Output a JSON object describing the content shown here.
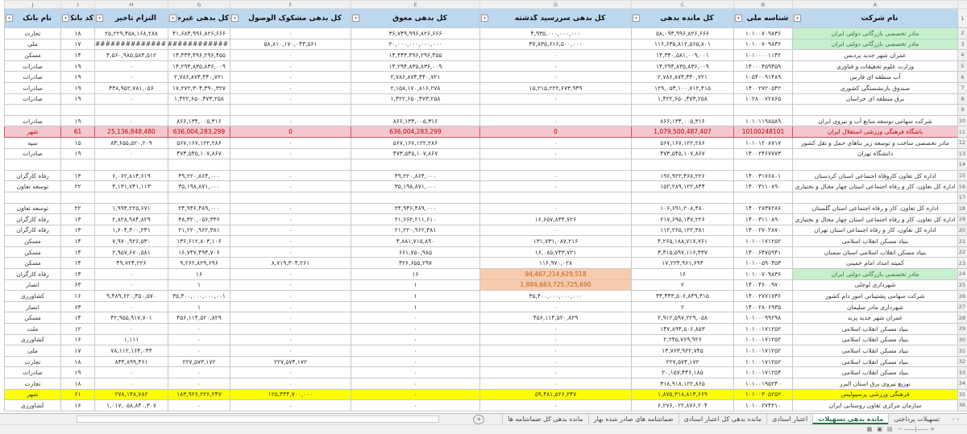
{
  "columns": {
    "letters": [
      "A",
      "B",
      "C",
      "D",
      "E",
      "F",
      "G",
      "H",
      "I",
      "J"
    ],
    "headers": [
      "نام شرکت",
      "شناسه ملی",
      "کل مانده بدهی",
      "کل بدهی سررسید گذشته",
      "کل بدهی معوق",
      "کل بدهی مشکوک الوصول",
      "کل بدهی غیرجار",
      "التزام تاخیر",
      "کد بانک",
      "نام بانک"
    ]
  },
  "rows": [
    {
      "n": "2",
      "style": "green",
      "c": [
        "مادر تخصصی بازرگانی دولتی ایران",
        "۱۰۱۰۰۷۰۹۸۳۶",
        "۵۸,۰۹۴,۹۹۶,۸۲۶,۶۶۶",
        "۴,۹۳۵,۰۰۰,۰۰۰,۰۰۰",
        "۳۶,۷۴۹,۹۹۶,۸۲۶,۶۶۶",
        "۰",
        "۴۱,۶۸۴,۹۹۶,۸۲۶,۶۶۶",
        "۲۵,۲۲۹,۴۵۸,۱۶۸,۲۸۸",
        "۱۸",
        "تجارت"
      ]
    },
    {
      "n": "3",
      "style": "green",
      "c": [
        "مادر تخصصی بازرگانی دولتی ایران",
        "۱۰۱۰۰۷۰۹۸۳۶",
        "۱۱۶,۶۳۵,۸۱۲,۵۶۵,۸۰۱",
        "۳۷,۸۳۵,۶۱۶,۵۰۰,۰۰۰",
        "۲۰,۰۰۰,۰۰۰,۰۰۰,۰۰۰",
        "۵۸,۸۱۰,۱۷۰,۰۴۳,۵۶۱",
        "##############",
        "##############",
        "۱۷",
        "ملی"
      ]
    },
    {
      "n": "4",
      "c": [
        "عمران شهر جدید پردیس",
        "۱۰۱۰۰۰۰۱۱۴۲",
        "۱۴,۳۴۰,۵۸۱,۰۰۹,۰۰۱",
        "۰",
        "۱۴,۴۴۳,۴۹۶,۲۹۶,۴۵۵",
        "۰",
        "۱۴,۴۴۳,۴۹۶,۲۹۶,۴۵۵",
        "۴,۵۶۰,۹۸۵,۵۸۴,۵۱۲",
        "۱۴",
        "مسکن"
      ]
    },
    {
      "n": "5",
      "c": [
        "وزارت علوم تحقیقات و فناوری",
        "۱۴۰۰۰۴۵۹۴۵۹",
        "۱۴,۲۹۴,۸۳۵,۸۳۶,۰۰۹",
        "۰",
        "۱۴,۲۹۴,۸۳۵,۸۳۶,۰۰۹",
        "۰",
        "۱۴,۲۹۴,۸۳۵,۸۳۶,۰۰۹",
        "۰",
        "۱۹",
        "صادرات"
      ]
    },
    {
      "n": "6",
      "c": [
        "آب منطقه ای فارس",
        "۱۰۵۴۰۰۹۱۴۸۹",
        "۲,۷۸۶,۸۷۴,۴۴۰,۷۲۱",
        "۰",
        "۲,۷۸۶,۸۷۴,۴۴۰,۷۲۱",
        "۰",
        "۲,۷۸۶,۸۷۴,۴۴۰,۷۲۱",
        "۰",
        "۱۹",
        "صادرات"
      ]
    },
    {
      "n": "7",
      "c": [
        "صندوق بازنشستگی کشوری",
        "۱۴۰۰۲۷۲۰۵۴۲",
        "۱۲۹,۰۵۳,۱۰۰,۷۱۲,۴۱۵",
        "۱۵,۲۱۵,۲۲۲,۶۷۳,۹۴۹",
        "۲,۱۵۸,۱۷۰,۸۱۶,۲۷۸",
        "۰",
        "۱۷,۲۷۲,۳۰۴,۳۹۰,۳۲۷",
        "۴۴۸,۹۵۲,۷۸۱,۰۵۶",
        "۱۹",
        "صادرات"
      ]
    },
    {
      "n": "8",
      "c": [
        "برق منطقه ای خراسان",
        "۱۰۲۸۰۰۷۲۸۶۵",
        "۱,۴۲۲,۶۵۰,۴۷۳,۲۵۸",
        "۰",
        "۱,۴۲۲,۶۵۰,۴۷۳,۲۵۸",
        "۰",
        "۱,۴۲۲,۶۵۰,۴۷۳,۲۵۸",
        "۰",
        "۱۹",
        "صادرات"
      ]
    },
    {
      "n": "9",
      "c": [
        "",
        "",
        "",
        "",
        "",
        "",
        "",
        "",
        "",
        ""
      ]
    },
    {
      "n": "10",
      "c": [
        "شرکت سهامی توسعه منابع آب و نیروی ایران",
        "۱۰۱۰۱۱۹۸۵۸۹",
        "۸۶۶,۱۳۴,۰۰۵,۳۱۶",
        "۰",
        "۸۶۶,۱۳۴,۰۰۵,۳۱۶",
        "۰",
        "۸۶۶,۱۳۴,۰۰۵,۳۱۶",
        "۰",
        "۱۹",
        "صادرات"
      ]
    },
    {
      "n": "11",
      "style": "pink",
      "c": [
        "باشگاه فرهنگی ورزشی استقلال ایران",
        "10100248101",
        "1,079,500,487,407",
        "0",
        "636,004,283,299",
        "0",
        "636,004,283,299",
        "25,136,848,480",
        "61",
        "شهر"
      ]
    },
    {
      "n": "12",
      "c": [
        "مادر تخصصی ساخت و توسعه زیر بناهای حمل و نقل کشور",
        "۱۰۱۰۱۲۰۸۷۱۷",
        "۵۶۷,۱۶۷,۱۲۲,۲۸۶",
        "۰",
        "۵۶۷,۱۶۷,۱۲۲,۲۸۶",
        "۰",
        "۵۶۷,۱۶۷,۱۲۲,۲۸۶",
        "۸۴,۶۵۵,۵۲۰,۲۰۹",
        "۱۵",
        "سپه"
      ]
    },
    {
      "n": "13",
      "c": [
        "دانشگاه تهران",
        "۱۴۰۰۲۴۶۷۷۷۳",
        "۴۷۳,۵۴۵,۱۰۷,۸۶۷",
        "۰",
        "۴۷۳,۵۴۵,۱۰۷,۸۶۷",
        "۰",
        "۴۷۳,۵۴۵,۱۰۷,۸۶۷",
        "۰",
        "۱۹",
        "صادرات"
      ]
    },
    {
      "n": "14",
      "c": [
        "",
        "",
        "",
        "",
        "",
        "",
        "",
        "",
        "",
        ""
      ]
    },
    {
      "n": "15",
      "c": [
        "اداره کل تعاون کاروفاه اجتماعی استان کردستان",
        "۱۴۰۰۳۱۷۶۸۰۱",
        "۱۹۶,۹۲۲,۴۶۸,۲۲۶",
        "۰",
        "۴۹,۲۲۰,۸۶۴,۰۰۰",
        "۰",
        "۴۹,۲۲۰,۸۶۴,۰۰۰",
        "۶,۰۶۲,۸۱۴,۶۱۹",
        "۱۳",
        "رفاه کارگران"
      ]
    },
    {
      "n": "16",
      "c": [
        "اداره کل تعاون، کار و رفاه اجتماعی استان چهار محال و بختیاری",
        "۱۴۰۰۳۱۱۰۸۹۰",
        "۱۵۲,۲۸۹,۱۲۲,۸۴۴",
        "۰",
        "۳۵,۱۹۸,۸۷۱,۰۰۰",
        "۰",
        "۳۵,۱۹۸,۸۷۱,۰۰۰",
        "۴,۱۳۱,۷۴۱,۱۱۳",
        "۲۲",
        "توسعه تعاون"
      ]
    },
    {
      "n": "17",
      "c": [
        "",
        "",
        "",
        "",
        "",
        "",
        "",
        "",
        "",
        ""
      ]
    },
    {
      "n": "18",
      "c": [
        "اداره کل تعاون، کار و رفاه اجتماعی استان گلستان",
        "۱۴۰۰۲۸۳۷۲۸۶",
        "۱۰۶,۶۹۱,۲۰۸,۴۸۰",
        "۰",
        "۲۴,۹۴۶,۴۸۹,۰۰۰",
        "۰",
        "۲۴,۹۴۶,۴۸۹,۰۰۰",
        "۱,۹۹۴,۲۲۵,۶۷۱",
        "۲۲",
        "توسعه تعاون"
      ]
    },
    {
      "n": "19",
      "c": [
        "اداره کل تعاون، کار و رفاه اجتماعی استان چهار محال و بختیاری",
        "۱۴۰۰۳۱۱۰۸۹۰",
        "۲۱۷,۶۹۵,۱۴۷,۲۲۶",
        "۱۶,۶۵۷,۸۴۴,۷۲۶",
        "۲۱,۶۶۲,۲۱۱,۶۱۰",
        "۰",
        "۳۸,۳۲۰,۰۵۶,۳۳۶",
        "۲,۸۲۸,۹۸۴,۸۲۹",
        "۱۳",
        "رفاه کارگران"
      ]
    },
    {
      "n": "20",
      "c": [
        "اداره کل تعاون، کار و رفاه اجتماعی استان تهران",
        "۱۴۰۰۲۷۰۲۸۷۰",
        "۱۱۲,۲۶۵,۱۲۲,۳۸۱",
        "۰",
        "۲۱,۲۲۰,۹۶۲,۳۸۱",
        "۰",
        "۲۱,۲۲۰,۹۶۲,۳۸۱",
        "۱,۶۰۴,۳۰۰,۲۴۱",
        "۱۳",
        "رفاه کارگران"
      ]
    },
    {
      "n": "21",
      "c": [
        "بنیاد مسکن انقلاب اسلامی",
        "۱۰۱۰۰۱۷۱۲۵۲",
        "۴,۲۶۵,۱۸۸,۷۱۷,۷۶۱",
        "۱۳۱,۷۳۱,۰۸۷,۲۱۶",
        "۴,۸۸۱,۷۱۵,۸۹۰",
        "۰",
        "۱۳۶,۶۱۲,۸۰۳,۱۰۶",
        "۷,۹۷۰,۹۲۶,۵۳۰",
        "۱۴",
        "مسکن"
      ]
    },
    {
      "n": "22",
      "c": [
        "بنیاد مسکن انقلاب اسلامی استان سمنان",
        "۱۴۰۰۶۴۷۵۹۴۱",
        "۳,۴۱۵,۵۹۷,۱۱۶,۴۳۷",
        "۱۶,۰۸۵,۷۴۳,۷۲۱",
        "۶۶۱,۷۵۰,۹۸۵",
        "۰",
        "۱۶,۷۴۷,۴۹۴,۷۰۶",
        "۲,۹۵۷,۶۷۰,۵۸۱",
        "۱۴",
        "مسکن"
      ]
    },
    {
      "n": "23",
      "c": [
        "کمیته امداد امام خمینی",
        "۱۰۱۰۰۵۹۰۴۵۳",
        "۱۷,۲۲۴,۹۶۱,۶۹۴",
        "۱۱۶,۹۷۰,۰۲۸",
        "۴۲۶,۶۵۵,۲۹۷",
        "۸,۷۱۹,۳۰۴,۲۶۱",
        "۹,۲۶۲,۸۲۹,۶۹۶",
        "۴۹,۷۲۴,۲۲۶",
        "۱۴",
        "مسکن"
      ]
    },
    {
      "n": "24",
      "style": "green",
      "orangeD": true,
      "c": [
        "مادر تخصصی بازرگانی دولتی ایران",
        "۱۰۱۰۰۷۰۹۸۳۶",
        "۱۶",
        "94,467,214,629,518",
        "۱۶",
        "۰",
        "۱۶",
        "۰",
        "۱۳",
        "رفاه کارگران"
      ]
    },
    {
      "n": "25",
      "orangeD": true,
      "c": [
        "شهرداری لوجلی",
        "۱۴۰۰۴۶۰۰۹۷۰",
        "۲",
        "1,884,663,725,725,690",
        "۱",
        "۰",
        "۱",
        "۰",
        "۶۳",
        "انصار"
      ]
    },
    {
      "n": "26",
      "c": [
        "شرکت سهامی پشتیبانی امور دام کشور",
        "۱۴۰۰۲۷۷۱۷۳۶",
        "۴۴,۴۴۳,۵۰۶,۸۴۹,۴۱۵",
        "۳۵,۴۰۰,۰۰۰,۰۰۰,۰۰۰",
        "۱",
        "۰",
        "۳۵,۴۰۰,۰۰۰,۰۰۰,۰۰۱",
        "۹,۴۸۹,۶۲۰,۴۵۰,۵۷۰",
        "۱۶",
        "کشاورزی"
      ]
    },
    {
      "n": "27",
      "c": [
        "شهرداری مادر سلیمان",
        "۱۴۰۰۲۸۰۶۹۳۵",
        "۲",
        "۰",
        "۱",
        "۰",
        "۱",
        "۰",
        "۶۳",
        "انصار"
      ]
    },
    {
      "n": "28",
      "c": [
        "عمران شهر جدید پرند",
        "۱۰۱۰۰۰۹۹۲۹۸",
        "۲,۹۱۲,۵۹۷,۲۲۹,۰۵۸",
        "۴۵۶,۱۱۴,۵۲۰,۸۲۹",
        "۰",
        "۰",
        "۴۵۶,۱۱۴,۵۲۰,۸۲۹",
        "۴۲,۹۵۵,۹۱۷,۷۰۱",
        "۱۴",
        "مسکن"
      ]
    },
    {
      "n": "29",
      "c": [
        "بنیاد مسکن انقلاب اسلامی",
        "۱۰۱۰۰۱۷۱۲۵۲",
        "۱۴۷,۸۹۴,۵۰۶,۸۵۳",
        "۰",
        "۰",
        "۰",
        "۰",
        "۰",
        "۱۲",
        "ملت"
      ]
    },
    {
      "n": "30",
      "c": [
        "بنیاد مسکن انقلاب اسلامی",
        "۱۰۱۰۰۱۷۱۲۵۲",
        "۲,۲۴۵,۷۶۹,۹۲۶",
        "۰",
        "۰",
        "۰",
        "۰",
        "۱,۱۱۱",
        "۱۶",
        "کشاورزی"
      ]
    },
    {
      "n": "31",
      "c": [
        "بنیاد مسکن انقلاب اسلامی",
        "۱۰۱۰۰۱۷۱۲۵۲",
        "۱۴,۷۶۳,۹۲۲,۷۴۵",
        "۰",
        "۰",
        "۰",
        "۰",
        "۷۸,۱۱۲,۱۶۴,۰۴۴",
        "۱۷",
        "ملی"
      ]
    },
    {
      "n": "32",
      "c": [
        "بنیاد مسکن انقلاب اسلامی",
        "۱۰۱۰۰۱۷۱۲۵۲",
        "۲۲۷,۵۷۴,۱۷۲",
        "۰",
        "۰",
        "۲۲۷,۵۷۴,۱۷۲",
        "۲۲۷,۵۷۳,۱۷۲",
        "۸۴۴,۸۹۹,۴۶۱",
        "۱۸",
        "تجارت"
      ]
    },
    {
      "n": "33",
      "c": [
        "بنیاد مسکن انقلاب اسلامی",
        "۱۰۱۰۰۱۷۱۲۵۴",
        "۲۰,۱۵۷,۴۴۶,۱۸۵",
        "۰",
        "۰",
        "۰",
        "۰",
        "۰",
        "۱۹",
        "صادرات"
      ]
    },
    {
      "n": "34",
      "c": [
        "توزیع نیروی برق استان البرز",
        "۱۰۱۰۰۱۹۵۲۴۰",
        "۳۱۸,۹۱۸,۱۲۲,۸۶۵",
        "۰",
        "۰",
        "۰",
        "۰",
        "۰",
        "۱۸",
        "تجارت"
      ]
    },
    {
      "n": "35",
      "style": "yellow",
      "c": [
        "فرهنگی ورزشی پرسپولیس",
        "۱۰۱۰۰۳۰۵۲۵۲",
        "۱,۸۷۵,۳۱۸,۸۱۳,۶۶۹",
        "۵۹,۴۸۱,۵۲۶,۲۴۷",
        "۰",
        "۱۲۵,۴۴۴,۷۰۰,۰۰۰",
        "۱۸۳,۹۲۶,۲۲۶,۲۴۷",
        "۲۷۸,۱۴۸,۷۸۲",
        "۶۱",
        "شهر"
      ]
    },
    {
      "n": "36",
      "c": [
        "سازمان مرکزی تعاون روستایی ایران",
        "۱۰۱۰۰۲۷۴۲۱۰",
        "۶,۲۷۶,۰۲۲,۸۷۶,۲۰۴",
        "۰",
        "۰",
        "۰",
        "۰",
        "۱,۰۱۷,۰۵۸,۸۴۰,۳۰۷",
        "۱۶",
        "کشاورزی"
      ]
    }
  ],
  "tabs": [
    "تسهیلات پرداختی",
    "مانده بدهی تسهیلات",
    "اعتبار اسنادی",
    "مانده بدهی کل اعتبار اسنادی",
    "ضمانتنامه های صادر شده بهار",
    "مانده بدهی کل ضمانتنامه ها"
  ],
  "active_tab": "مانده بدهی تسهیلات",
  "add_sheet": "+",
  "colors": {
    "header": "#bdd7ee",
    "green": "#c6efce",
    "pink": "#f4c7cf",
    "yellow": "#ffff00",
    "orange": "#f8cbad",
    "accent": "#217346"
  }
}
